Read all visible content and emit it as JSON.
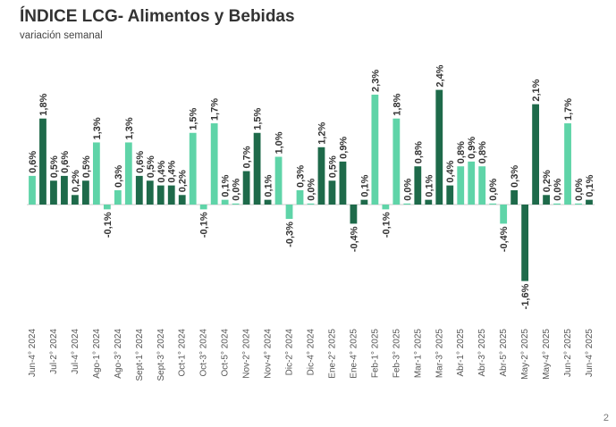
{
  "page": {
    "title": "ÍNDICE LCG- Alimentos y Bebidas",
    "subtitle": "variación semanal",
    "page_number": "2"
  },
  "colors": {
    "light": "#5fd4a8",
    "dark": "#1e6a4a",
    "axis": "#c9c9c9",
    "label_text": "#333333",
    "tick_text": "#555555"
  },
  "chart_data": {
    "type": "bar",
    "title": "ÍNDICE LCG- Alimentos y Bebidas",
    "subtitle": "variación semanal",
    "ylim": [
      -1.7,
      2.7
    ],
    "grid": false,
    "legend": "none",
    "values": [
      0.6,
      1.8,
      0.5,
      0.6,
      0.2,
      0.5,
      1.3,
      -0.1,
      0.3,
      1.3,
      0.6,
      0.5,
      0.4,
      0.4,
      0.2,
      1.5,
      -0.1,
      1.7,
      0.1,
      0.0,
      0.7,
      1.5,
      0.1,
      1.0,
      -0.3,
      0.3,
      0.0,
      1.2,
      0.5,
      0.9,
      -0.4,
      0.1,
      2.3,
      -0.1,
      1.8,
      0.0,
      0.8,
      0.1,
      2.4,
      0.4,
      0.8,
      0.9,
      0.8,
      0.0,
      -0.4,
      0.3,
      -1.6,
      2.1,
      0.2,
      0.0,
      1.7,
      0.0,
      0.1
    ],
    "value_labels": [
      "0,6%",
      "1,8%",
      "0,5%",
      "0,6%",
      "0,2%",
      "0,5%",
      "1,3%",
      "-0,1%",
      "0,3%",
      "1,3%",
      "0,6%",
      "0,5%",
      "0,4%",
      "0,4%",
      "0,2%",
      "1,5%",
      "-0,1%",
      "1,7%",
      "0,1%",
      "0,0%",
      "0,7%",
      "1,5%",
      "0,1%",
      "1,0%",
      "-0,3%",
      "0,3%",
      "0,0%",
      "1,2%",
      "0,5%",
      "0,9%",
      "-0,4%",
      "0,1%",
      "2,3%",
      "-0,1%",
      "1,8%",
      "0,0%",
      "0,8%",
      "0,1%",
      "2,4%",
      "0,4%",
      "0,8%",
      "0,9%",
      "0,8%",
      "0,0%",
      "-0,4%",
      "0,3%",
      "-1,6%",
      "2,1%",
      "0,2%",
      "0,0%",
      "1,7%",
      "0,0%",
      "0,1%"
    ],
    "shades": [
      "light",
      "dark",
      "dark",
      "dark",
      "dark",
      "dark",
      "light",
      "light",
      "light",
      "light",
      "dark",
      "dark",
      "dark",
      "dark",
      "dark",
      "light",
      "light",
      "light",
      "light",
      "light",
      "dark",
      "dark",
      "dark",
      "light",
      "light",
      "light",
      "light",
      "dark",
      "dark",
      "dark",
      "dark",
      "dark",
      "light",
      "light",
      "light",
      "light",
      "dark",
      "dark",
      "dark",
      "dark",
      "light",
      "light",
      "light",
      "light",
      "light",
      "dark",
      "dark",
      "dark",
      "dark",
      "light",
      "light",
      "light",
      "dark"
    ],
    "tick_labels": [
      "Jun-4° 2024",
      "Jul-2° 2024",
      "Jul-4° 2024",
      "Ago-1° 2024",
      "Ago-3° 2024",
      "Sept-1° 2024",
      "Sept-3° 2024",
      "Oct-1° 2024",
      "Oct-3° 2024",
      "Oct-5° 2024",
      "Nov-2° 2024",
      "Nov-4° 2024",
      "Dic-2° 2024",
      "Dic-4° 2024",
      "Ene-2° 2025",
      "Ene-4° 2025",
      "Feb-1° 2025",
      "Feb-3° 2025",
      "Mar-1° 2025",
      "Mar-3° 2025",
      "Abr-1° 2025",
      "Abr-3° 2025",
      "Abr-5° 2025",
      "May-2° 2025",
      "May-4° 2025",
      "Jun-2° 2025",
      "Jun-4° 2025"
    ]
  }
}
